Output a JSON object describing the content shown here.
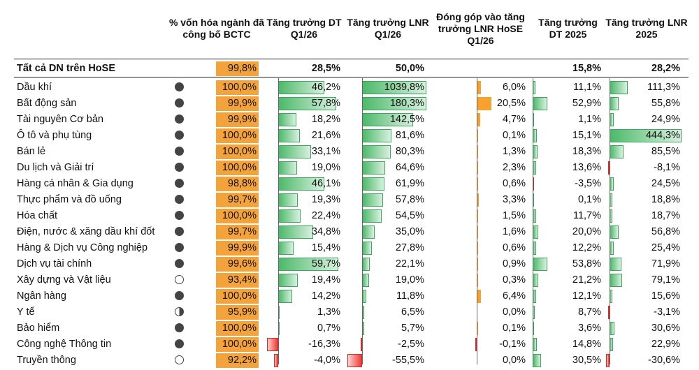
{
  "headers": {
    "name": "",
    "pct_cap": "% vốn hóa ngành đã công bố BCTC",
    "dt_q1": "Tăng trưởng DT Q1/26",
    "lnr_q1": "Tăng trưởng LNR Q1/26",
    "contrib": "Đóng góp vào tăng trưởng LNR HoSE Q1/26",
    "dt_2025": "Tăng trưởng DT 2025",
    "lnr_2025": "Tăng trưởng LNR 2025"
  },
  "colors": {
    "pct_fill": "#f4a23a",
    "pos_bar": "#4cb96a",
    "neg_bar": "#ef3b36",
    "contrib_bar": "#f7a22e"
  },
  "total": {
    "name": "Tất cả DN trên HoSE",
    "pct": "99,8%",
    "dt_q1": "28,5%",
    "lnr_q1": "50,0%",
    "contrib": "",
    "dt_2025": "15,8%",
    "lnr_2025": "28,2%"
  },
  "rows": [
    {
      "name": "Dầu khí",
      "circle": "full",
      "pct": "100,0%",
      "dt_q1": "46,2%",
      "lnr_q1": "1039,8%",
      "contrib": "6,0%",
      "dt_2025": "11,1%",
      "lnr_2025": "111,3%",
      "v": [
        46.2,
        1039.8,
        6.0,
        11.1,
        111.3
      ]
    },
    {
      "name": "Bất động sản",
      "circle": "full",
      "pct": "99,9%",
      "dt_q1": "57,8%",
      "lnr_q1": "180,3%",
      "contrib": "20,5%",
      "dt_2025": "52,9%",
      "lnr_2025": "55,8%",
      "v": [
        57.8,
        180.3,
        20.5,
        52.9,
        55.8
      ]
    },
    {
      "name": "Tài nguyên Cơ bản",
      "circle": "full",
      "pct": "99,9%",
      "dt_q1": "18,2%",
      "lnr_q1": "142,5%",
      "contrib": "4,7%",
      "dt_2025": "1,1%",
      "lnr_2025": "24,9%",
      "v": [
        18.2,
        142.5,
        4.7,
        1.1,
        24.9
      ]
    },
    {
      "name": "Ô tô và phụ tùng",
      "circle": "full",
      "pct": "100,0%",
      "dt_q1": "21,6%",
      "lnr_q1": "81,6%",
      "contrib": "0,1%",
      "dt_2025": "15,1%",
      "lnr_2025": "444,3%",
      "v": [
        21.6,
        81.6,
        0.1,
        15.1,
        444.3
      ]
    },
    {
      "name": "Bán lẻ",
      "circle": "full",
      "pct": "100,0%",
      "dt_q1": "33,1%",
      "lnr_q1": "80,3%",
      "contrib": "1,3%",
      "dt_2025": "18,3%",
      "lnr_2025": "85,5%",
      "v": [
        33.1,
        80.3,
        1.3,
        18.3,
        85.5
      ]
    },
    {
      "name": "Du lịch và Giải trí",
      "circle": "full",
      "pct": "100,0%",
      "dt_q1": "19,0%",
      "lnr_q1": "64,6%",
      "contrib": "2,3%",
      "dt_2025": "13,6%",
      "lnr_2025": "-8,1%",
      "v": [
        19.0,
        64.6,
        2.3,
        13.6,
        -8.1
      ]
    },
    {
      "name": "Hàng cá nhân & Gia dụng",
      "circle": "full",
      "pct": "98,8%",
      "dt_q1": "46,1%",
      "lnr_q1": "61,9%",
      "contrib": "0,6%",
      "dt_2025": "-3,5%",
      "lnr_2025": "24,5%",
      "v": [
        46.1,
        61.9,
        0.6,
        -3.5,
        24.5
      ]
    },
    {
      "name": "Thực phẩm và đồ uống",
      "circle": "full",
      "pct": "99,7%",
      "dt_q1": "19,3%",
      "lnr_q1": "57,8%",
      "contrib": "3,3%",
      "dt_2025": "0,1%",
      "lnr_2025": "18,8%",
      "v": [
        19.3,
        57.8,
        3.3,
        0.1,
        18.8
      ]
    },
    {
      "name": "Hóa chất",
      "circle": "full",
      "pct": "100,0%",
      "dt_q1": "22,4%",
      "lnr_q1": "54,5%",
      "contrib": "1,5%",
      "dt_2025": "11,7%",
      "lnr_2025": "18,7%",
      "v": [
        22.4,
        54.5,
        1.5,
        11.7,
        18.7
      ]
    },
    {
      "name": "Điện, nước & xăng dầu khí đốt",
      "circle": "full",
      "pct": "99,7%",
      "dt_q1": "34,8%",
      "lnr_q1": "35,0%",
      "contrib": "1,6%",
      "dt_2025": "20,0%",
      "lnr_2025": "56,8%",
      "v": [
        34.8,
        35.0,
        1.6,
        20.0,
        56.8
      ]
    },
    {
      "name": "Hàng & Dịch vụ Công nghiệp",
      "circle": "full",
      "pct": "99,9%",
      "dt_q1": "15,4%",
      "lnr_q1": "27,8%",
      "contrib": "0,6%",
      "dt_2025": "12,2%",
      "lnr_2025": "25,4%",
      "v": [
        15.4,
        27.8,
        0.6,
        12.2,
        25.4
      ]
    },
    {
      "name": "Dịch vụ tài chính",
      "circle": "full",
      "pct": "99,6%",
      "dt_q1": "59,7%",
      "lnr_q1": "22,1%",
      "contrib": "0,9%",
      "dt_2025": "53,8%",
      "lnr_2025": "71,9%",
      "v": [
        59.7,
        22.1,
        0.9,
        53.8,
        71.9
      ]
    },
    {
      "name": "Xây dựng và Vật liệu",
      "circle": "empty",
      "pct": "93,4%",
      "dt_q1": "19,4%",
      "lnr_q1": "19,0%",
      "contrib": "0,3%",
      "dt_2025": "21,2%",
      "lnr_2025": "79,1%",
      "v": [
        19.4,
        19.0,
        0.3,
        21.2,
        79.1
      ]
    },
    {
      "name": "Ngân hàng",
      "circle": "full",
      "pct": "100,0%",
      "dt_q1": "14,2%",
      "lnr_q1": "11,8%",
      "contrib": "6,4%",
      "dt_2025": "12,1%",
      "lnr_2025": "15,6%",
      "v": [
        14.2,
        11.8,
        6.4,
        12.1,
        15.6
      ]
    },
    {
      "name": "Y tế",
      "circle": "half",
      "pct": "95,9%",
      "dt_q1": "1,3%",
      "lnr_q1": "6,5%",
      "contrib": "0,0%",
      "dt_2025": "8,7%",
      "lnr_2025": "-3,1%",
      "v": [
        1.3,
        6.5,
        0.0,
        8.7,
        -3.1
      ]
    },
    {
      "name": "Bảo hiểm",
      "circle": "full",
      "pct": "100,0%",
      "dt_q1": "0,7%",
      "lnr_q1": "5,7%",
      "contrib": "0,1%",
      "dt_2025": "3,6%",
      "lnr_2025": "30,6%",
      "v": [
        0.7,
        5.7,
        0.1,
        3.6,
        30.6
      ]
    },
    {
      "name": "Công nghệ Thông tin",
      "circle": "full",
      "pct": "100,0%",
      "dt_q1": "-16,3%",
      "lnr_q1": "-2,5%",
      "contrib": "-0,1%",
      "dt_2025": "14,8%",
      "lnr_2025": "22,9%",
      "v": [
        -16.3,
        -2.5,
        -0.1,
        14.8,
        22.9
      ]
    },
    {
      "name": "Truyền thông",
      "circle": "empty",
      "pct": "92,2%",
      "dt_q1": "-4,0%",
      "lnr_q1": "-55,5%",
      "contrib": "0,0%",
      "dt_2025": "30,5%",
      "lnr_2025": "-30,6%",
      "v": [
        -4.0,
        -55.5,
        0.0,
        30.5,
        -30.6
      ]
    }
  ]
}
